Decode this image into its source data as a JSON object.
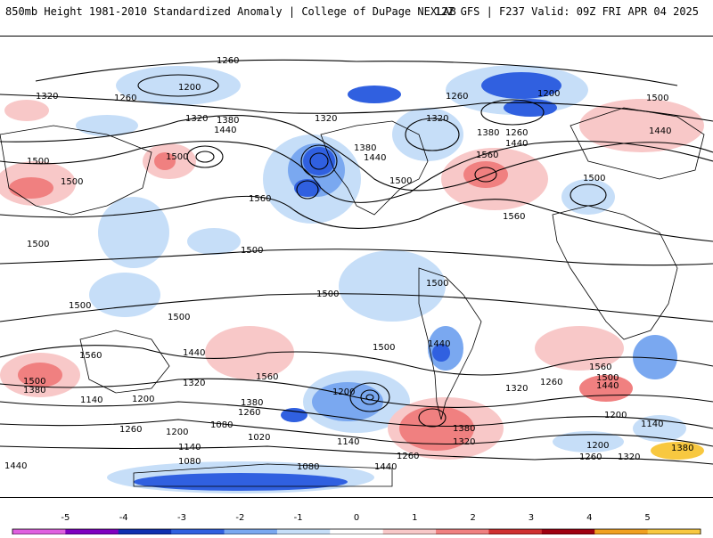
{
  "header": {
    "title": "850mb Height 1981-2010 Standardized Anomaly | College of DuPage NEXLAB",
    "run_info": "12Z GFS | F237 Valid: 09Z FRI APR 04 2025"
  },
  "contour_labels": [
    "1260",
    "1200",
    "1320",
    "1260",
    "1320",
    "1380",
    "1440",
    "1320",
    "1380",
    "1440",
    "1500",
    "1560",
    "1500",
    "1500",
    "1260",
    "1200",
    "1320",
    "1380",
    "1260",
    "1440",
    "1500",
    "1560",
    "1500",
    "1440",
    "1500",
    "1560",
    "1500",
    "1500",
    "1500",
    "1500",
    "1500",
    "1500",
    "1500",
    "1560",
    "1440",
    "1320",
    "1380",
    "1260",
    "1200",
    "1140",
    "1080",
    "1020",
    "1260",
    "1200",
    "1140",
    "1080",
    "1440",
    "1560",
    "1260",
    "1320",
    "1380",
    "1320",
    "1260",
    "1200",
    "1200",
    "1140",
    "1380",
    "1440",
    "1500",
    "1560",
    "1320",
    "1260",
    "1200",
    "1140",
    "1080",
    "1380",
    "1440",
    "1500",
    "1440"
  ],
  "legend": {
    "ticks": [
      "-5",
      "-4",
      "-3",
      "-2",
      "-1",
      "0",
      "1",
      "2",
      "3",
      "4",
      "5"
    ],
    "colors": [
      "#e060e0",
      "#8000c0",
      "#1030b0",
      "#3060e0",
      "#7aa8f0",
      "#c6def8",
      "#ffffff",
      "#f8c8c8",
      "#f08080",
      "#d03030",
      "#a00010",
      "#f0a020",
      "#f8c840"
    ]
  }
}
